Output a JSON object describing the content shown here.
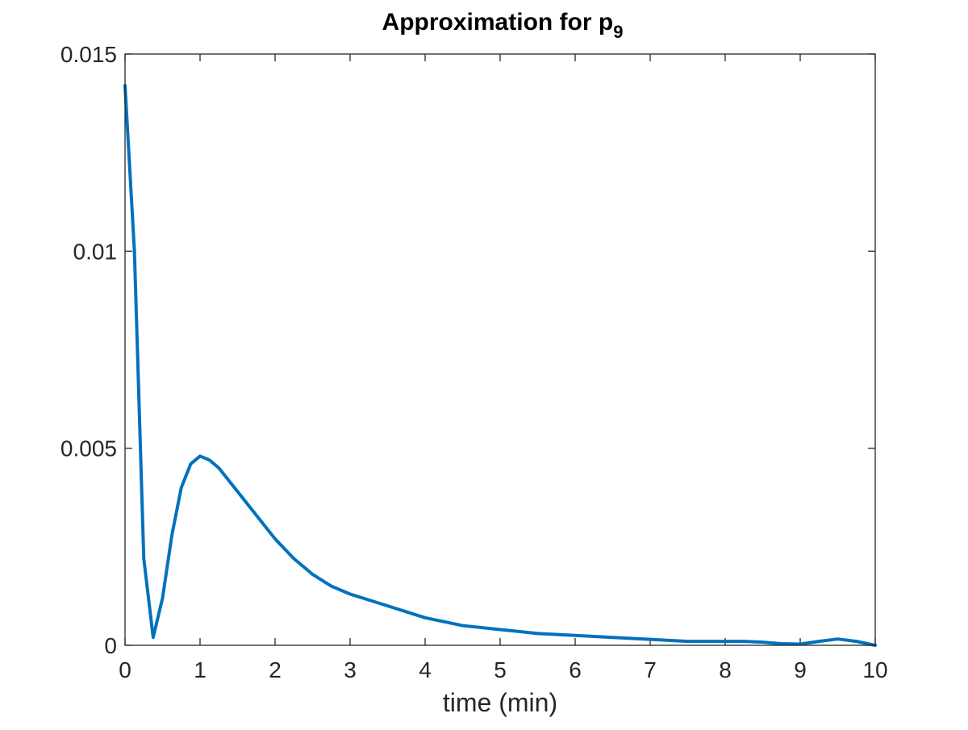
{
  "chart_data": {
    "type": "line",
    "title": "Approximation for p",
    "title_subscript": "9",
    "xlabel": "time (min)",
    "ylabel": "",
    "xlim": [
      0,
      10
    ],
    "ylim": [
      0,
      0.015
    ],
    "grid": false,
    "x_ticks": [
      0,
      1,
      2,
      3,
      4,
      5,
      6,
      7,
      8,
      9,
      10
    ],
    "x_tick_labels": [
      "0",
      "1",
      "2",
      "3",
      "4",
      "5",
      "6",
      "7",
      "8",
      "9",
      "10"
    ],
    "y_ticks": [
      0,
      0.005,
      0.01,
      0.015
    ],
    "y_tick_labels": [
      "0",
      "0.005",
      "0.01",
      "0.015"
    ],
    "series": [
      {
        "color": "#0072BD",
        "x": [
          0.0,
          0.125,
          0.25,
          0.375,
          0.5,
          0.625,
          0.75,
          0.875,
          1.0,
          1.125,
          1.25,
          1.5,
          1.75,
          2.0,
          2.25,
          2.5,
          2.75,
          3.0,
          3.5,
          4.0,
          4.5,
          5.0,
          5.5,
          6.0,
          6.5,
          7.0,
          7.5,
          8.0,
          8.25,
          8.5,
          8.75,
          9.0,
          9.25,
          9.5,
          9.75,
          10.0
        ],
        "y": [
          0.0142,
          0.01,
          0.0022,
          0.0002,
          0.0012,
          0.0028,
          0.004,
          0.0046,
          0.0048,
          0.0047,
          0.0045,
          0.0039,
          0.0033,
          0.0027,
          0.0022,
          0.0018,
          0.0015,
          0.0013,
          0.001,
          0.0007,
          0.0005,
          0.0004,
          0.0003,
          0.00025,
          0.0002,
          0.00015,
          0.0001,
          0.0001,
          0.0001,
          8e-05,
          4e-05,
          3e-05,
          0.0001,
          0.00016,
          0.0001,
          0.0
        ]
      }
    ]
  }
}
